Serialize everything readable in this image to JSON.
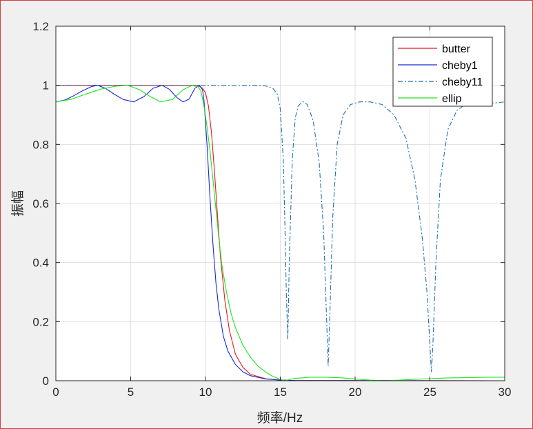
{
  "chart_data": {
    "type": "line",
    "title": "",
    "xlabel": "频率/Hz",
    "ylabel": "振幅",
    "xlim": [
      0,
      30
    ],
    "ylim": [
      0,
      1.2
    ],
    "xticks": [
      "0",
      "5",
      "10",
      "15",
      "20",
      "25",
      "30"
    ],
    "yticks": [
      "0",
      "0.2",
      "0.4",
      "0.6",
      "0.8",
      "1",
      "1.2"
    ],
    "grid": true,
    "legend_position": "top-right",
    "series": [
      {
        "name": "butter",
        "color": "#e8161b",
        "dash": "solid",
        "x": [
          0,
          5,
          9.0,
          9.5,
          9.8,
          10.0,
          10.2,
          10.4,
          10.6,
          10.8,
          11.0,
          11.3,
          11.6,
          12.0,
          12.5,
          13.0,
          14.0,
          15.0,
          16.0,
          30.0
        ],
        "y": [
          1,
          1,
          1,
          0.999,
          0.99,
          0.975,
          0.93,
          0.84,
          0.71,
          0.56,
          0.42,
          0.27,
          0.17,
          0.09,
          0.045,
          0.022,
          0.007,
          0.002,
          0.0005,
          0
        ]
      },
      {
        "name": "cheby1",
        "color": "#1428d8",
        "dash": "solid",
        "x": [
          0,
          0.6,
          1.2,
          1.8,
          2.4,
          2.8,
          3.3,
          3.9,
          4.5,
          5.2,
          5.9,
          6.5,
          7.1,
          7.6,
          8.1,
          8.5,
          8.9,
          9.3,
          9.6,
          9.8,
          9.9,
          10.1,
          10.3,
          10.5,
          10.7,
          10.9,
          11.2,
          11.5,
          12.0,
          12.5,
          13.0,
          14.0,
          15.0,
          16.0,
          30.0
        ],
        "y": [
          0.944,
          0.95,
          0.965,
          0.982,
          0.996,
          1.0,
          0.99,
          0.97,
          0.952,
          0.944,
          0.962,
          0.99,
          1.0,
          0.986,
          0.958,
          0.944,
          0.953,
          0.99,
          1.0,
          0.985,
          0.95,
          0.8,
          0.62,
          0.46,
          0.33,
          0.24,
          0.15,
          0.1,
          0.055,
          0.03,
          0.017,
          0.006,
          0.002,
          0.0007,
          0
        ]
      },
      {
        "name": "cheby11",
        "color": "#1e6fb0",
        "dash": "dashdot",
        "x": [
          0,
          5,
          10,
          14.0,
          14.5,
          14.8,
          15.0,
          15.2,
          15.3,
          15.4,
          15.5,
          15.6,
          15.8,
          16.0,
          16.2,
          16.5,
          16.8,
          17.2,
          17.6,
          17.9,
          18.1,
          18.2,
          18.3,
          18.5,
          18.8,
          19.2,
          19.7,
          20.3,
          21.0,
          21.8,
          22.6,
          23.4,
          24.0,
          24.5,
          24.8,
          25.0,
          25.1,
          25.2,
          25.4,
          25.7,
          26.2,
          26.8,
          27.5,
          28.5,
          29.3,
          30.0
        ],
        "y": [
          1,
          1,
          1,
          0.998,
          0.99,
          0.97,
          0.92,
          0.75,
          0.55,
          0.3,
          0.14,
          0.4,
          0.75,
          0.89,
          0.93,
          0.945,
          0.935,
          0.88,
          0.74,
          0.5,
          0.2,
          0.05,
          0.2,
          0.55,
          0.8,
          0.9,
          0.935,
          0.944,
          0.944,
          0.935,
          0.9,
          0.82,
          0.68,
          0.48,
          0.3,
          0.12,
          0.03,
          0.12,
          0.4,
          0.68,
          0.85,
          0.915,
          0.94,
          0.944,
          0.94,
          0.944
        ]
      },
      {
        "name": "ellip",
        "color": "#1ee51e",
        "dash": "solid",
        "x": [
          0,
          1.0,
          2.0,
          3.0,
          4.0,
          4.8,
          5.6,
          6.3,
          7.0,
          7.8,
          8.5,
          9.1,
          9.5,
          9.7,
          9.9,
          10.1,
          10.3,
          10.5,
          10.7,
          10.9,
          11.1,
          11.4,
          11.7,
          12.0,
          12.5,
          13.0,
          13.5,
          14.0,
          14.5,
          15.0,
          15.3,
          15.6,
          16.0,
          17.0,
          18.0,
          19.0,
          20.0,
          21.0,
          22.0,
          23.0,
          24.0,
          25.0,
          26.0,
          27.0,
          28.0,
          29.0,
          30.0
        ],
        "y": [
          0.944,
          0.952,
          0.97,
          0.987,
          0.997,
          1.0,
          0.985,
          0.962,
          0.944,
          0.952,
          0.985,
          1.0,
          0.995,
          0.98,
          0.93,
          0.86,
          0.78,
          0.68,
          0.58,
          0.48,
          0.39,
          0.3,
          0.23,
          0.18,
          0.12,
          0.08,
          0.05,
          0.03,
          0.015,
          0.005,
          0.0,
          0.004,
          0.008,
          0.012,
          0.012,
          0.01,
          0.006,
          0.002,
          0.0,
          0.002,
          0.005,
          0.007,
          0.009,
          0.01,
          0.011,
          0.012,
          0.012
        ]
      }
    ]
  }
}
